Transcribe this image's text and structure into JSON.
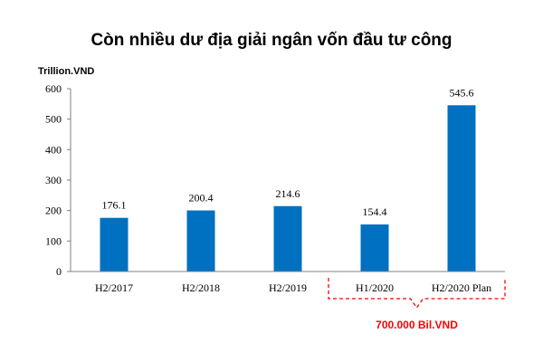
{
  "chart_data": {
    "type": "bar",
    "title": "Còn nhiều dư địa giải ngân vốn đầu tư công",
    "ylabel": "Trillion.VND",
    "xlabel": "",
    "categories": [
      "H2/2017",
      "H2/2018",
      "H2/2019",
      "H1/2020",
      "H2/2020 Plan"
    ],
    "values": [
      176.1,
      200.4,
      214.6,
      154.4,
      545.6
    ],
    "data_labels": [
      "176.1",
      "200.4",
      "214.6",
      "154.4",
      "545.6"
    ],
    "ylim": [
      0,
      600
    ],
    "yticks": [
      0,
      100,
      200,
      300,
      400,
      500,
      600
    ],
    "grid": false,
    "legend": "none",
    "bar_color": "#0070C0",
    "annotation": {
      "text": "700.000 Bil.VND",
      "color": "#FF0000",
      "spans": [
        "H1/2020",
        "H2/2020 Plan"
      ]
    }
  }
}
